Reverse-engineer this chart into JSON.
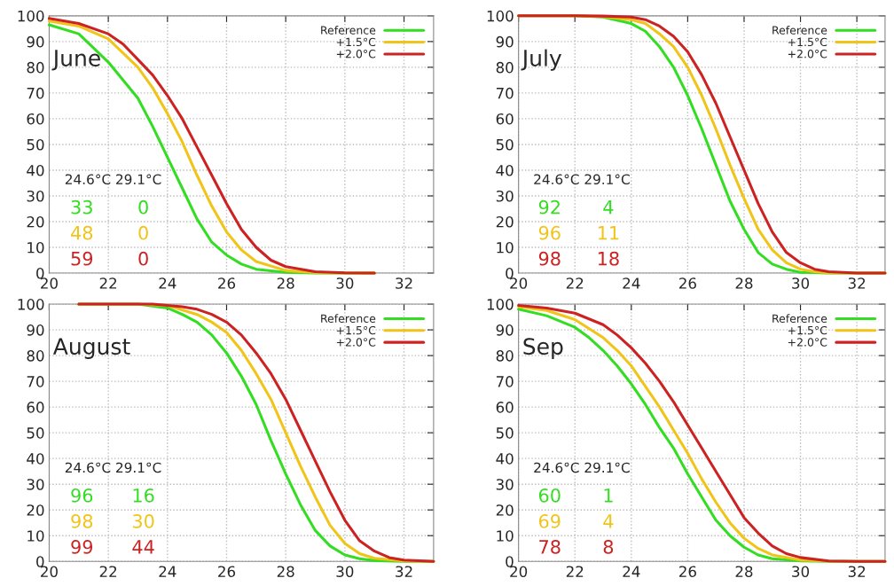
{
  "chart_data": [
    {
      "type": "line",
      "title": "June",
      "xlim": [
        20,
        33
      ],
      "ylim": [
        0,
        100
      ],
      "xticks": [
        20,
        22,
        24,
        26,
        28,
        30,
        32
      ],
      "yticks": [
        0,
        10,
        20,
        30,
        40,
        50,
        60,
        70,
        80,
        90,
        100
      ],
      "grid": true,
      "legend": "top right",
      "annotations": [
        "24.6°C 29.1°C",
        "33",
        "0",
        "48",
        "0",
        "59",
        "0"
      ],
      "series": [
        {
          "name": "Reference",
          "color": "#33dd22",
          "x": [
            20,
            21,
            22,
            23,
            23.5,
            24,
            24.5,
            25,
            25.5,
            26,
            26.5,
            27,
            28,
            29,
            31
          ],
          "values": [
            96.5,
            93,
            82,
            68,
            57,
            45,
            33,
            21,
            12,
            7,
            3.5,
            1.5,
            0.3,
            0,
            0
          ]
        },
        {
          "name": "+1.5°C",
          "color": "#f0c419",
          "x": [
            20,
            21,
            22,
            23,
            23.5,
            24,
            24.5,
            25,
            25.5,
            26,
            26.5,
            27,
            28,
            29,
            30,
            31
          ],
          "values": [
            98,
            96,
            91,
            80,
            72,
            62,
            51,
            38,
            26,
            16,
            9,
            4.5,
            1,
            0.2,
            0,
            0
          ]
        },
        {
          "name": "+2.0°C",
          "color": "#cc2222",
          "x": [
            20,
            21,
            22,
            22.5,
            23,
            23.5,
            24,
            24.5,
            25,
            25.5,
            26,
            26.5,
            27,
            27.5,
            28,
            29,
            30,
            31
          ],
          "values": [
            99,
            97,
            93,
            89,
            83,
            77,
            69,
            60,
            49,
            38,
            27,
            17,
            10,
            5,
            2.5,
            0.5,
            0.1,
            0
          ]
        }
      ]
    },
    {
      "type": "line",
      "title": "July",
      "xlim": [
        20,
        33
      ],
      "ylim": [
        0,
        100
      ],
      "xticks": [
        20,
        22,
        24,
        26,
        28,
        30,
        32
      ],
      "yticks": [
        0,
        10,
        20,
        30,
        40,
        50,
        60,
        70,
        80,
        90,
        100
      ],
      "grid": true,
      "legend": "top right",
      "annotations": [
        "24.6°C 29.1°C",
        "92",
        "4",
        "96",
        "11",
        "98",
        "18"
      ],
      "series": [
        {
          "name": "Reference",
          "color": "#33dd22",
          "x": [
            20,
            22,
            23,
            24,
            24.5,
            25,
            25.5,
            26,
            26.5,
            27,
            27.5,
            28,
            28.5,
            29,
            29.5,
            30,
            31,
            33
          ],
          "values": [
            100,
            100,
            99.5,
            97,
            94,
            88,
            80,
            69,
            56,
            42,
            28,
            17,
            8,
            3.5,
            1.5,
            0.3,
            0,
            0
          ]
        },
        {
          "name": "+1.5°C",
          "color": "#f0c419",
          "x": [
            20,
            22,
            23,
            24,
            24.5,
            25,
            25.5,
            26,
            26.5,
            27,
            27.5,
            28,
            28.5,
            29,
            29.5,
            30,
            30.5,
            31,
            33
          ],
          "values": [
            100,
            100,
            99.7,
            98.5,
            97,
            93,
            88,
            80,
            69,
            56,
            42,
            29,
            17,
            9,
            4,
            1.5,
            0.5,
            0.1,
            0
          ]
        },
        {
          "name": "+2.0°C",
          "color": "#cc2222",
          "x": [
            20,
            22,
            23,
            24,
            24.5,
            25,
            25.5,
            26,
            26.5,
            27,
            27.5,
            28,
            28.5,
            29,
            29.5,
            30,
            30.5,
            31,
            32,
            33
          ],
          "values": [
            100,
            100,
            99.9,
            99.5,
            98.5,
            96,
            92,
            86,
            77,
            66,
            53,
            40,
            27,
            16,
            8,
            4,
            1.5,
            0.5,
            0,
            0
          ]
        }
      ]
    },
    {
      "type": "line",
      "title": "August",
      "xlim": [
        20,
        33
      ],
      "ylim": [
        0,
        100
      ],
      "xticks": [
        20,
        22,
        24,
        26,
        28,
        30,
        32
      ],
      "yticks": [
        0,
        10,
        20,
        30,
        40,
        50,
        60,
        70,
        80,
        90,
        100
      ],
      "grid": true,
      "legend": "top right",
      "annotations": [
        "24.6°C 29.1°C",
        "96",
        "16",
        "98",
        "30",
        "99",
        "44"
      ],
      "series": [
        {
          "name": "Reference",
          "color": "#33dd22",
          "x": [
            21,
            23,
            24,
            24.5,
            25,
            25.5,
            26,
            26.5,
            27,
            27.5,
            28,
            28.5,
            29,
            29.5,
            30,
            30.5,
            31,
            32,
            33
          ],
          "values": [
            100,
            100,
            98.5,
            96,
            93,
            88,
            81,
            72,
            61,
            47,
            34,
            22,
            12,
            6,
            2.5,
            1,
            0.3,
            0,
            0
          ]
        },
        {
          "name": "+1.5°C",
          "color": "#f0c419",
          "x": [
            21,
            23,
            24,
            25,
            25.5,
            26,
            26.5,
            27,
            27.5,
            28,
            28.5,
            29,
            29.5,
            30,
            30.5,
            31,
            32,
            33
          ],
          "values": [
            100,
            100,
            99.5,
            96,
            93,
            89,
            82,
            73,
            63,
            50,
            37,
            25,
            14,
            7,
            3,
            1.2,
            0.2,
            0
          ]
        },
        {
          "name": "+2.0°C",
          "color": "#cc2222",
          "x": [
            21,
            23.5,
            24.5,
            25,
            25.5,
            26,
            26.5,
            27,
            27.5,
            28,
            28.5,
            29,
            29.5,
            30,
            30.5,
            31,
            31.5,
            32,
            33
          ],
          "values": [
            100,
            100,
            99,
            98,
            96,
            93,
            88,
            81,
            73,
            63,
            51,
            39,
            27,
            16,
            8,
            4,
            1.5,
            0.5,
            0
          ]
        }
      ]
    },
    {
      "type": "line",
      "title": "Sep",
      "xlim": [
        20,
        33
      ],
      "ylim": [
        0,
        100
      ],
      "xticks": [
        20,
        22,
        24,
        26,
        28,
        30,
        32
      ],
      "yticks": [
        0,
        10,
        20,
        30,
        40,
        50,
        60,
        70,
        80,
        90,
        100
      ],
      "grid": true,
      "legend": "top right",
      "annotations": [
        "24.6°C 29.1°C",
        "60",
        "1",
        "69",
        "4",
        "78",
        "8"
      ],
      "series": [
        {
          "name": "Reference",
          "color": "#33dd22",
          "x": [
            20,
            21,
            22,
            22.5,
            23,
            23.5,
            24,
            24.5,
            25,
            25.5,
            26,
            26.5,
            27,
            27.5,
            28,
            28.5,
            29,
            30,
            31,
            33
          ],
          "values": [
            98,
            95.5,
            91,
            87,
            82,
            76,
            69,
            61,
            52,
            44,
            34,
            25,
            16,
            10,
            5.5,
            2.5,
            1,
            0.2,
            0,
            0
          ]
        },
        {
          "name": "+1.5°C",
          "color": "#f0c419",
          "x": [
            20,
            21,
            22,
            23,
            23.5,
            24,
            24.5,
            25,
            25.5,
            26,
            26.5,
            27,
            27.5,
            28,
            28.5,
            29,
            30,
            31,
            33
          ],
          "values": [
            99,
            97.5,
            94,
            87,
            82,
            76,
            68,
            60,
            51,
            42,
            32,
            23,
            15,
            9,
            5,
            2.5,
            0.5,
            0.1,
            0
          ]
        },
        {
          "name": "+2.0°C",
          "color": "#cc2222",
          "x": [
            20,
            21,
            22,
            23,
            23.5,
            24,
            24.5,
            25,
            25.5,
            26,
            26.5,
            27,
            27.5,
            28,
            28.5,
            29,
            29.5,
            30,
            31,
            32,
            33
          ],
          "values": [
            99.5,
            98.5,
            96.5,
            92,
            88,
            83,
            77,
            70,
            62,
            53,
            44,
            35,
            26,
            17,
            11,
            6,
            3,
            1.5,
            0.2,
            0,
            0
          ]
        }
      ]
    }
  ]
}
